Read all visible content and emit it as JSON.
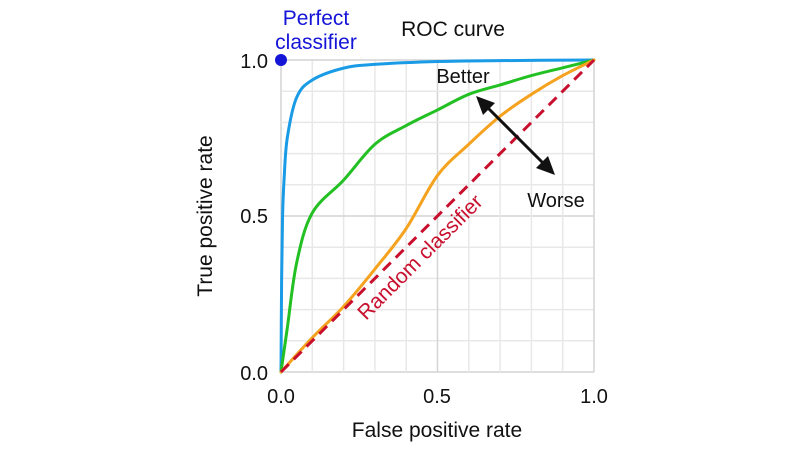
{
  "chart_data": {
    "type": "line",
    "title": "ROC curve",
    "xlabel": "False positive rate",
    "ylabel": "True positive rate",
    "xlim": [
      0,
      1
    ],
    "ylim": [
      0,
      1
    ],
    "grid": true,
    "x_ticks": [
      "0.0",
      "0.5",
      "1.0"
    ],
    "y_ticks": [
      "0.0",
      "0.5",
      "1.0"
    ],
    "series": [
      {
        "color": "#1a9be6",
        "points": [
          [
            0,
            0
          ],
          [
            0.002,
            0.3
          ],
          [
            0.005,
            0.5
          ],
          [
            0.01,
            0.62
          ],
          [
            0.02,
            0.75
          ],
          [
            0.05,
            0.88
          ],
          [
            0.1,
            0.936
          ],
          [
            0.2,
            0.974
          ],
          [
            0.3,
            0.986
          ],
          [
            0.5,
            0.995
          ],
          [
            0.7,
            0.998
          ],
          [
            1,
            1
          ]
        ]
      },
      {
        "color": "#22c022",
        "points": [
          [
            0,
            0
          ],
          [
            0.02,
            0.14
          ],
          [
            0.05,
            0.35
          ],
          [
            0.1,
            0.51
          ],
          [
            0.2,
            0.615
          ],
          [
            0.3,
            0.73
          ],
          [
            0.4,
            0.79
          ],
          [
            0.5,
            0.84
          ],
          [
            0.6,
            0.89
          ],
          [
            0.7,
            0.92
          ],
          [
            0.8,
            0.95
          ],
          [
            0.9,
            0.975
          ],
          [
            1,
            1
          ]
        ]
      },
      {
        "color": "#f5a21f",
        "points": [
          [
            0,
            0
          ],
          [
            0.1,
            0.11
          ],
          [
            0.2,
            0.21
          ],
          [
            0.3,
            0.33
          ],
          [
            0.4,
            0.46
          ],
          [
            0.5,
            0.63
          ],
          [
            0.6,
            0.73
          ],
          [
            0.7,
            0.82
          ],
          [
            0.8,
            0.89
          ],
          [
            0.9,
            0.95
          ],
          [
            1,
            1
          ]
        ]
      }
    ],
    "random_classifier": {
      "label": "Random classifier",
      "color": "#c8102e",
      "points": [
        [
          0,
          0
        ],
        [
          1,
          1
        ]
      ],
      "style": "dashed"
    },
    "perfect_classifier": {
      "label_line1": "Perfect",
      "label_line2": "classifier",
      "color": "#1515d8",
      "point": [
        0,
        1
      ]
    },
    "annotations": {
      "better": "Better",
      "worse": "Worse"
    }
  }
}
